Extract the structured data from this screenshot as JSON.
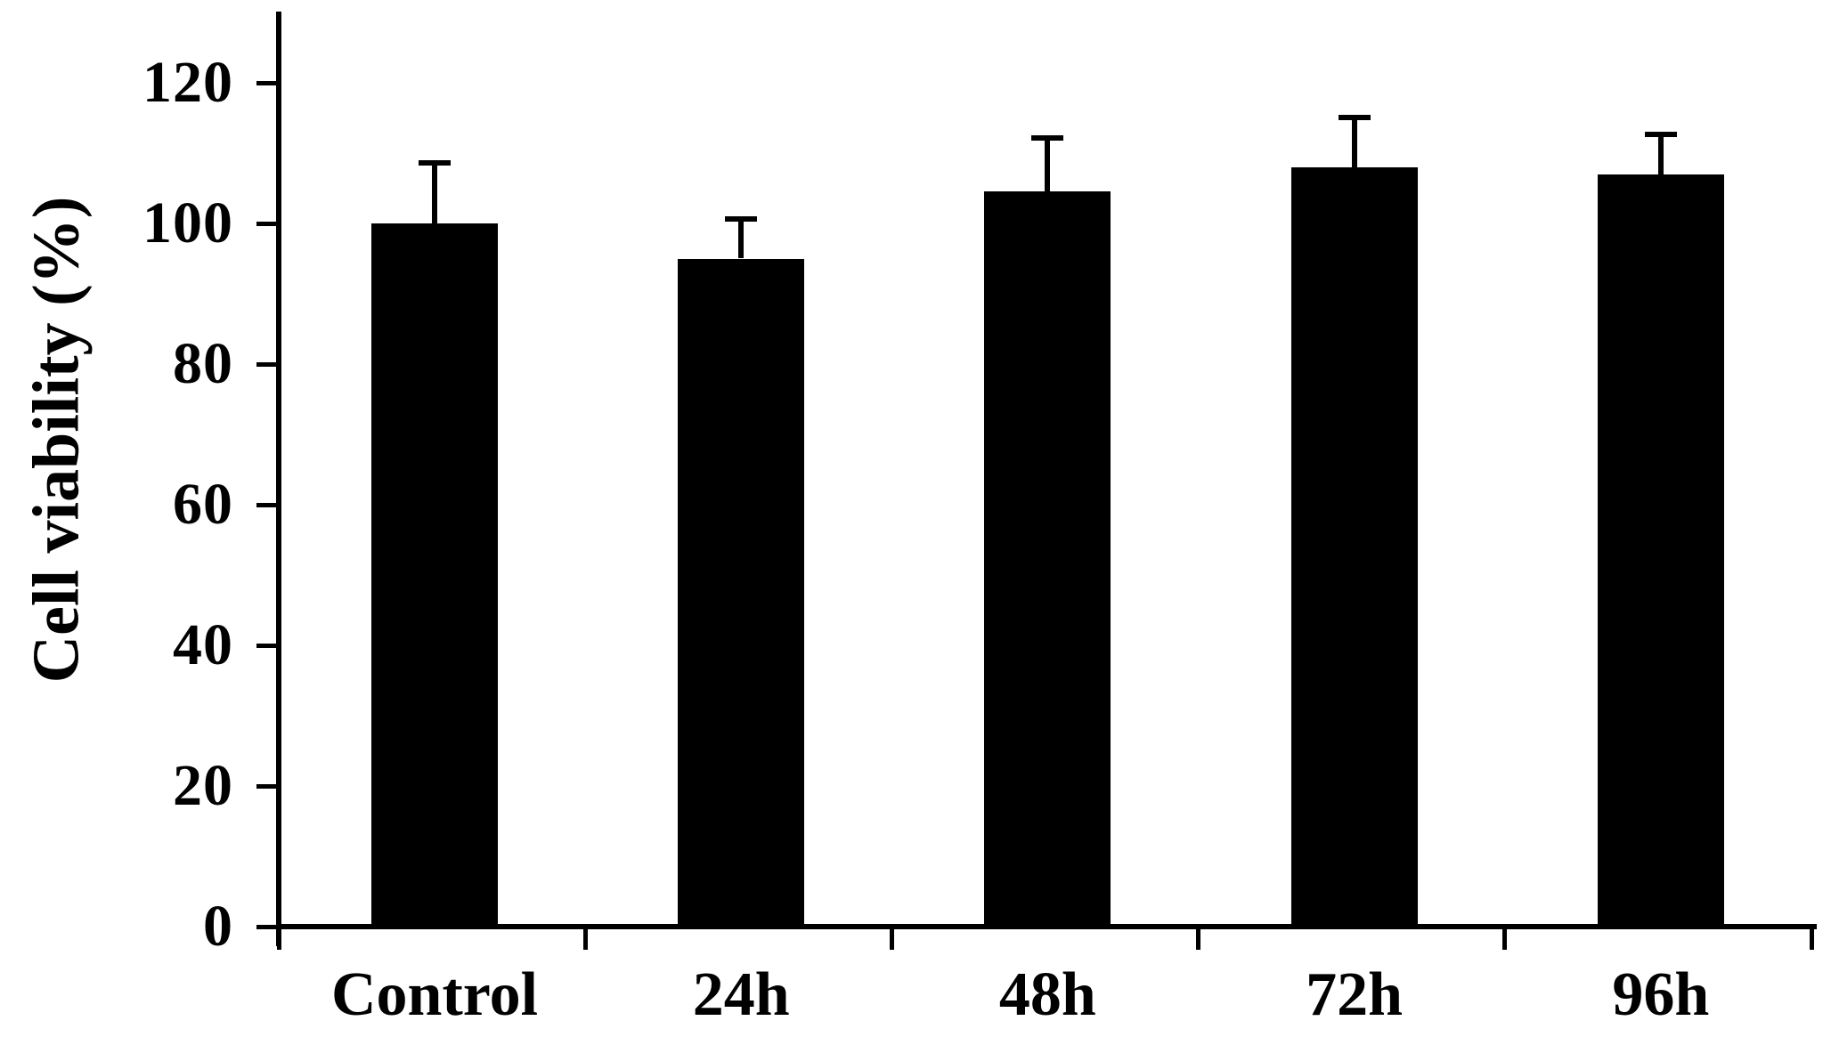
{
  "figure": {
    "background_color": "#ffffff",
    "text_color": "#000000"
  },
  "chart_data": {
    "type": "bar",
    "title": "",
    "xlabel": "",
    "ylabel": "Cell viability (%)",
    "categories": [
      "Control",
      "24h",
      "48h",
      "72h",
      "96h"
    ],
    "series": [
      {
        "name": "Cell viability",
        "values": [
          100,
          95,
          104.5,
          108,
          107
        ],
        "errors_plus": [
          9,
          6,
          8,
          7.5,
          6
        ]
      }
    ],
    "ytick_labels": [
      "0",
      "20",
      "40",
      "60",
      "80",
      "100",
      "120"
    ],
    "ytick_values": [
      0,
      20,
      40,
      60,
      80,
      100,
      120
    ],
    "ylim": [
      0,
      130
    ],
    "bar_color": "#000000",
    "error_bar_color": "#000000",
    "grid": "off",
    "legend": "none",
    "error_bars": "upper-only"
  }
}
